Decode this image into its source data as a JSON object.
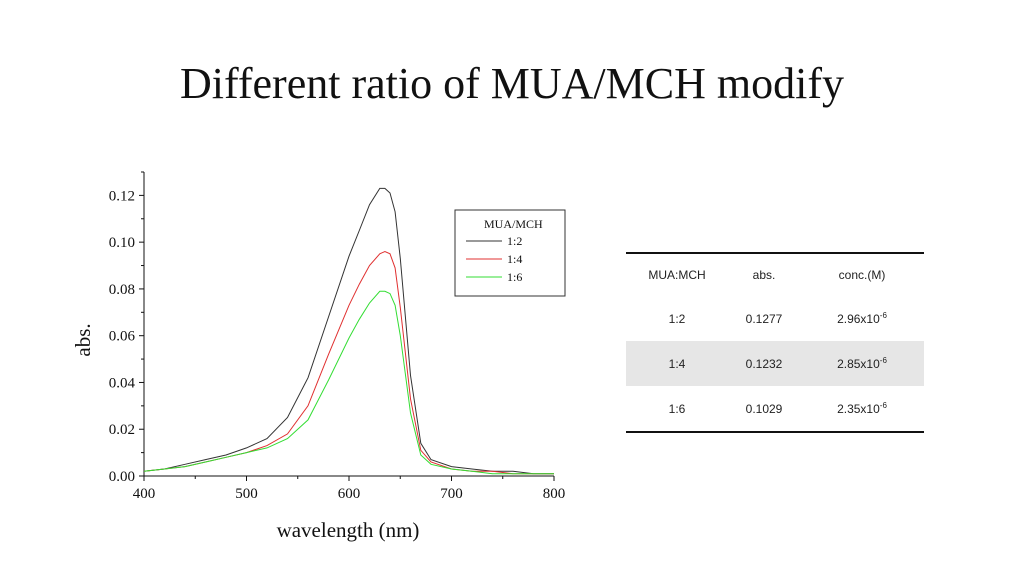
{
  "slide": {
    "title": "Different ratio of MUA/MCH modify"
  },
  "chart_data": {
    "type": "line",
    "title": "",
    "xlabel": "wavelength (nm)",
    "ylabel": "abs.",
    "xlim": [
      400,
      800
    ],
    "ylim": [
      0,
      0.13
    ],
    "xticks": [
      400,
      500,
      600,
      700,
      800
    ],
    "xtick_labels": [
      "400",
      "500",
      "600",
      "700",
      "800"
    ],
    "yticks": [
      0.0,
      0.02,
      0.04,
      0.06,
      0.08,
      0.1,
      0.12
    ],
    "ytick_labels": [
      "0.00",
      "0.02",
      "0.04",
      "0.06",
      "0.08",
      "0.10",
      "0.12"
    ],
    "grid": false,
    "legend": {
      "title": "MUA/MCH",
      "placement": "top-right"
    },
    "x": [
      400,
      420,
      440,
      460,
      480,
      500,
      520,
      540,
      560,
      580,
      600,
      610,
      620,
      630,
      635,
      640,
      645,
      650,
      660,
      670,
      680,
      700,
      720,
      740,
      760,
      780,
      800
    ],
    "series": [
      {
        "name": "1:2",
        "color": "#333333",
        "values": [
          0.002,
          0.003,
          0.005,
          0.007,
          0.009,
          0.012,
          0.016,
          0.025,
          0.042,
          0.068,
          0.094,
          0.105,
          0.116,
          0.123,
          0.123,
          0.121,
          0.113,
          0.093,
          0.043,
          0.014,
          0.007,
          0.004,
          0.003,
          0.002,
          0.002,
          0.001,
          0.001
        ]
      },
      {
        "name": "1:4",
        "color": "#e03030",
        "values": [
          0.002,
          0.003,
          0.004,
          0.006,
          0.008,
          0.01,
          0.013,
          0.018,
          0.03,
          0.052,
          0.073,
          0.082,
          0.09,
          0.095,
          0.096,
          0.095,
          0.089,
          0.072,
          0.033,
          0.011,
          0.006,
          0.003,
          0.002,
          0.002,
          0.001,
          0.001,
          0.001
        ]
      },
      {
        "name": "1:6",
        "color": "#33dd33",
        "values": [
          0.002,
          0.003,
          0.004,
          0.006,
          0.008,
          0.01,
          0.012,
          0.016,
          0.024,
          0.041,
          0.059,
          0.067,
          0.074,
          0.079,
          0.079,
          0.078,
          0.073,
          0.06,
          0.027,
          0.009,
          0.005,
          0.003,
          0.002,
          0.001,
          0.001,
          0.001,
          0.001
        ]
      }
    ]
  },
  "table": {
    "headers": [
      "MUA:MCH",
      "abs.",
      "conc.(M)"
    ],
    "rows": [
      {
        "ratio": "1:2",
        "abs": "0.1277",
        "conc_base": "2.96x10",
        "conc_exp": "-6"
      },
      {
        "ratio": "1:4",
        "abs": "0.1232",
        "conc_base": "2.85x10",
        "conc_exp": "-6"
      },
      {
        "ratio": "1:6",
        "abs": "0.1029",
        "conc_base": "2.35x10",
        "conc_exp": "-6"
      }
    ]
  }
}
